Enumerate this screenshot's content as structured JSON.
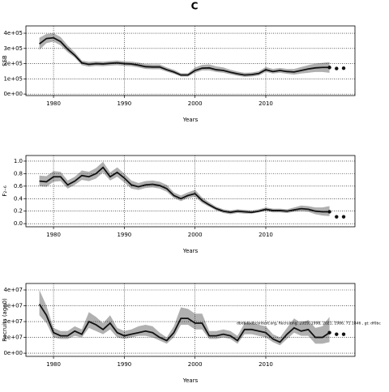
{
  "chart_data": [
    {
      "type": "line",
      "title": "C",
      "ylabel": "SSB",
      "xlabel": "Years",
      "color": "#111111",
      "band_color": "#b0b0b0",
      "grid": true,
      "xlim": [
        1976.1,
        2022.6
      ],
      "xticks": [
        1980,
        1990,
        2000,
        2010
      ],
      "ylim": [
        -10000,
        448000
      ],
      "yticks": [
        {
          "value": 0,
          "label": "0e+00"
        },
        {
          "value": 100000,
          "label": "1e+05"
        },
        {
          "value": 200000,
          "label": "2e+05"
        },
        {
          "value": 300000,
          "label": "3e+05"
        },
        {
          "value": 400000,
          "label": "4e+05"
        }
      ],
      "x": [
        1978,
        1979,
        1980,
        1981,
        1982,
        1983,
        1984,
        1985,
        1986,
        1987,
        1988,
        1989,
        1990,
        1991,
        1992,
        1993,
        1994,
        1995,
        1996,
        1997,
        1998,
        1999,
        2000,
        2001,
        2002,
        2003,
        2004,
        2005,
        2006,
        2007,
        2008,
        2009,
        2010,
        2011,
        2012,
        2013,
        2014,
        2015,
        2016,
        2017,
        2018,
        2019
      ],
      "values": [
        330000,
        365000,
        370000,
        345000,
        295000,
        255000,
        205000,
        195000,
        200000,
        198000,
        202000,
        205000,
        200000,
        198000,
        190000,
        180000,
        178000,
        178000,
        160000,
        145000,
        125000,
        125000,
        155000,
        170000,
        172000,
        160000,
        155000,
        143000,
        133000,
        125000,
        128000,
        135000,
        160000,
        148000,
        155000,
        148000,
        145000,
        155000,
        165000,
        172000,
        175000,
        175000
      ],
      "lower": [
        290000,
        335000,
        345000,
        320000,
        275000,
        240000,
        190000,
        180000,
        185000,
        183000,
        187000,
        190000,
        185000,
        183000,
        175000,
        165000,
        163000,
        163000,
        147000,
        133000,
        115000,
        115000,
        140000,
        155000,
        155000,
        145000,
        140000,
        130000,
        120000,
        113000,
        115000,
        122000,
        145000,
        135000,
        140000,
        133000,
        128000,
        135000,
        140000,
        145000,
        145000,
        140000
      ],
      "upper": [
        370000,
        395000,
        400000,
        375000,
        320000,
        275000,
        220000,
        212000,
        215000,
        213000,
        217000,
        220000,
        215000,
        213000,
        207000,
        197000,
        195000,
        195000,
        175000,
        160000,
        137000,
        137000,
        175000,
        192000,
        195000,
        182000,
        175000,
        160000,
        148000,
        140000,
        142000,
        150000,
        178000,
        165000,
        172000,
        165000,
        165000,
        178000,
        190000,
        200000,
        205000,
        210000
      ],
      "forecast_x": [
        2019,
        2020,
        2021
      ],
      "forecast_values": [
        175000,
        168000,
        170000
      ]
    },
    {
      "type": "line",
      "ylabel": "F₂₋₆",
      "xlabel": "Years",
      "color": "#111111",
      "band_color": "#b0b0b0",
      "grid": true,
      "xlim": [
        1976.1,
        2022.6
      ],
      "xticks": [
        1980,
        1990,
        2000,
        2010
      ],
      "ylim": [
        -0.05,
        1.09
      ],
      "yticks": [
        {
          "value": 0,
          "label": "0.0"
        },
        0.2,
        0.4,
        0.6,
        0.8,
        {
          "value": 1,
          "label": "1.0"
        }
      ],
      "x": [
        1978,
        1979,
        1980,
        1981,
        1982,
        1983,
        1984,
        1985,
        1986,
        1987,
        1988,
        1989,
        1990,
        1991,
        1992,
        1993,
        1994,
        1995,
        1996,
        1997,
        1998,
        1999,
        2000,
        2001,
        2002,
        2003,
        2004,
        2005,
        2006,
        2007,
        2008,
        2009,
        2010,
        2011,
        2012,
        2013,
        2014,
        2015,
        2016,
        2017,
        2018,
        2019
      ],
      "values": [
        0.68,
        0.67,
        0.75,
        0.75,
        0.62,
        0.68,
        0.77,
        0.75,
        0.8,
        0.9,
        0.75,
        0.82,
        0.73,
        0.62,
        0.59,
        0.62,
        0.63,
        0.61,
        0.56,
        0.45,
        0.4,
        0.45,
        0.48,
        0.37,
        0.3,
        0.24,
        0.2,
        0.18,
        0.2,
        0.19,
        0.18,
        0.2,
        0.23,
        0.21,
        0.21,
        0.2,
        0.22,
        0.24,
        0.23,
        0.2,
        0.19,
        0.19
      ],
      "lower": [
        0.6,
        0.59,
        0.67,
        0.68,
        0.56,
        0.62,
        0.7,
        0.68,
        0.72,
        0.82,
        0.69,
        0.75,
        0.66,
        0.56,
        0.54,
        0.57,
        0.58,
        0.56,
        0.51,
        0.41,
        0.36,
        0.41,
        0.43,
        0.33,
        0.27,
        0.21,
        0.17,
        0.15,
        0.17,
        0.16,
        0.16,
        0.18,
        0.2,
        0.18,
        0.18,
        0.17,
        0.19,
        0.2,
        0.19,
        0.15,
        0.13,
        0.12
      ],
      "upper": [
        0.77,
        0.76,
        0.84,
        0.83,
        0.69,
        0.75,
        0.85,
        0.83,
        0.89,
        0.99,
        0.82,
        0.9,
        0.8,
        0.69,
        0.65,
        0.68,
        0.69,
        0.67,
        0.62,
        0.5,
        0.45,
        0.5,
        0.54,
        0.42,
        0.34,
        0.27,
        0.23,
        0.21,
        0.23,
        0.22,
        0.21,
        0.23,
        0.26,
        0.24,
        0.24,
        0.23,
        0.26,
        0.29,
        0.28,
        0.26,
        0.26,
        0.28
      ],
      "forecast_x": [
        2019,
        2020,
        2021
      ],
      "forecast_values": [
        0.19,
        0.11,
        0.11
      ]
    },
    {
      "type": "line",
      "ylabel": "Recruits (age0)",
      "xlabel": "Years",
      "color": "#111111",
      "band_color": "#b0b0b0",
      "grid": true,
      "annotation": "dbdbdbdbcontent.org, Recruiting. 2019, 1998, 2021, 1986, 71 1846 , gt: df0bc",
      "xlim": [
        1976.1,
        2022.6
      ],
      "xticks": [
        1980,
        1990,
        2000,
        2010
      ],
      "ylim": [
        -2000000,
        44100000
      ],
      "yticks": [
        {
          "value": 0,
          "label": "0e+00"
        },
        {
          "value": 10000000,
          "label": "1e+07"
        },
        {
          "value": 20000000,
          "label": "2e+07"
        },
        {
          "value": 30000000,
          "label": "3e+07"
        },
        {
          "value": 40000000,
          "label": "4e+07"
        }
      ],
      "x": [
        1978,
        1979,
        1980,
        1981,
        1982,
        1983,
        1984,
        1985,
        1986,
        1987,
        1988,
        1989,
        1990,
        1991,
        1992,
        1993,
        1994,
        1995,
        1996,
        1997,
        1998,
        1999,
        2000,
        2001,
        2002,
        2003,
        2004,
        2005,
        2006,
        2007,
        2008,
        2009,
        2010,
        2011,
        2012,
        2013,
        2014,
        2015,
        2016,
        2017,
        2018,
        2019
      ],
      "values": [
        31000000,
        24000000,
        13000000,
        11000000,
        11000000,
        14000000,
        12000000,
        20000000,
        18000000,
        15000000,
        19000000,
        13000000,
        11000000,
        12000000,
        13000000,
        14000000,
        13000000,
        10000000,
        8000000,
        13000000,
        22000000,
        22000000,
        19000000,
        19000000,
        11000000,
        11000000,
        12000000,
        11000000,
        8000000,
        15000000,
        15000000,
        14000000,
        13000000,
        9000000,
        7000000,
        12000000,
        16000000,
        14000000,
        15000000,
        10000000,
        10000000,
        13000000
      ],
      "lower": [
        24000000,
        19000000,
        10000000,
        9000000,
        9000000,
        11000000,
        10000000,
        16000000,
        14000000,
        12000000,
        15000000,
        10000000,
        9000000,
        10000000,
        11000000,
        11000000,
        10000000,
        8000000,
        6000000,
        10000000,
        18000000,
        18000000,
        15000000,
        15000000,
        9000000,
        9000000,
        10000000,
        9000000,
        6000000,
        12000000,
        12000000,
        11000000,
        10000000,
        7000000,
        5000000,
        9000000,
        13000000,
        11000000,
        11000000,
        6000000,
        6000000,
        7000000
      ],
      "upper": [
        40000000,
        30000000,
        16000000,
        14000000,
        14000000,
        17000000,
        15000000,
        26000000,
        23000000,
        19000000,
        24000000,
        16000000,
        14000000,
        15000000,
        17000000,
        18000000,
        17000000,
        13000000,
        10000000,
        17000000,
        29000000,
        28000000,
        25000000,
        25000000,
        14000000,
        14000000,
        15000000,
        14000000,
        11000000,
        19000000,
        19000000,
        18000000,
        17000000,
        12000000,
        10000000,
        16000000,
        22000000,
        19000000,
        21000000,
        16000000,
        17000000,
        23000000
      ],
      "forecast_x": [
        2019,
        2020,
        2021
      ],
      "forecast_values": [
        13000000,
        12000000,
        12000000
      ]
    }
  ]
}
